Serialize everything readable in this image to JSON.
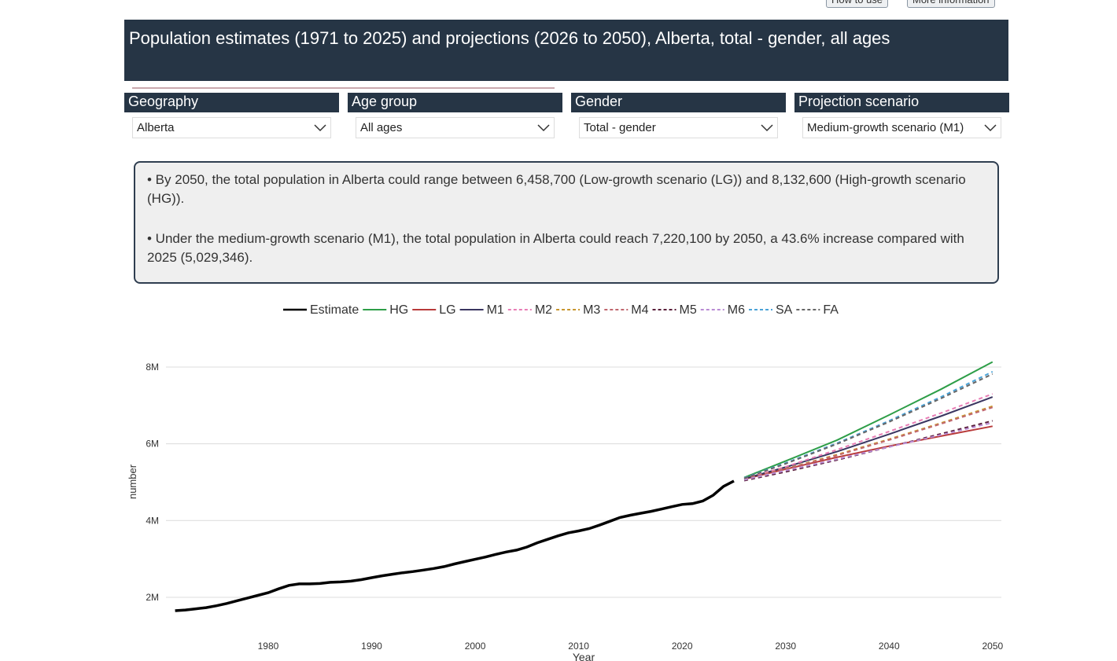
{
  "buttons": [
    "How to use",
    "More information"
  ],
  "header": {
    "title": "Population estimates (1971 to 2025) and projections (2026 to 2050), Alberta, total - gender, all ages"
  },
  "filters": [
    {
      "label": "Geography",
      "value": "Alberta"
    },
    {
      "label": "Age group",
      "value": "All ages"
    },
    {
      "label": "Gender",
      "value": "Total - gender"
    },
    {
      "label": "Projection scenario",
      "value": "Medium-growth scenario (M1)"
    }
  ],
  "summary": [
    "• By 2050, the total population in Alberta could range between 6,458,700 (Low-growth scenario (LG)) and 8,132,600 (High-growth scenario (HG)).",
    "• Under the medium-growth scenario (M1), the total population in Alberta could reach 7,220,100 by 2050, a 43.6% increase compared with 2025 (5,029,346)."
  ],
  "chart_data": {
    "type": "line",
    "x_label": "Year",
    "y_label": "number",
    "legend": "top",
    "grid": true,
    "xlim": [
      1970,
      2051
    ],
    "xticks": [
      1980,
      1990,
      2000,
      2010,
      2020,
      2030,
      2040,
      2050
    ],
    "ylim": [
      1200000,
      8500000
    ],
    "yticks": [
      {
        "value": 2000000,
        "label": "2M"
      },
      {
        "value": 4000000,
        "label": "4M"
      },
      {
        "value": 6000000,
        "label": "6M"
      },
      {
        "value": 8000000,
        "label": "8M"
      }
    ],
    "series": [
      {
        "name": "Estimate",
        "color": "#000000",
        "line_style": "solid",
        "x": [
          1971,
          1972,
          1973,
          1974,
          1975,
          1976,
          1977,
          1978,
          1979,
          1980,
          1981,
          1982,
          1983,
          1984,
          1985,
          1986,
          1987,
          1988,
          1989,
          1990,
          1991,
          1992,
          1993,
          1994,
          1995,
          1996,
          1997,
          1998,
          1999,
          2000,
          2001,
          2002,
          2003,
          2004,
          2005,
          2006,
          2007,
          2008,
          2009,
          2010,
          2011,
          2012,
          2013,
          2014,
          2015,
          2016,
          2017,
          2018,
          2019,
          2020,
          2021,
          2022,
          2023,
          2024,
          2025
        ],
        "values": [
          1650000,
          1670000,
          1700000,
          1730000,
          1780000,
          1840000,
          1910000,
          1980000,
          2050000,
          2120000,
          2220000,
          2310000,
          2350000,
          2350000,
          2360000,
          2390000,
          2400000,
          2420000,
          2460000,
          2510000,
          2560000,
          2600000,
          2640000,
          2670000,
          2710000,
          2750000,
          2800000,
          2870000,
          2930000,
          2990000,
          3050000,
          3120000,
          3180000,
          3230000,
          3310000,
          3420000,
          3510000,
          3600000,
          3680000,
          3730000,
          3790000,
          3880000,
          3980000,
          4080000,
          4140000,
          4190000,
          4240000,
          4300000,
          4360000,
          4420000,
          4440000,
          4510000,
          4660000,
          4890000,
          5029346
        ]
      },
      {
        "name": "HG",
        "color": "#2e9e48",
        "line_style": "solid",
        "x": [
          2026,
          2030,
          2035,
          2040,
          2045,
          2050
        ],
        "values": [
          5120000,
          5550000,
          6100000,
          6750000,
          7420000,
          8132600
        ]
      },
      {
        "name": "LG",
        "color": "#b83a3a",
        "line_style": "solid",
        "x": [
          2026,
          2030,
          2035,
          2040,
          2045,
          2050
        ],
        "values": [
          5080000,
          5340000,
          5650000,
          5940000,
          6200000,
          6458700
        ]
      },
      {
        "name": "M1",
        "color": "#3a3560",
        "line_style": "solid",
        "x": [
          2026,
          2030,
          2035,
          2040,
          2045,
          2050
        ],
        "values": [
          5090000,
          5390000,
          5800000,
          6250000,
          6720000,
          7220100
        ]
      },
      {
        "name": "M2",
        "color": "#e87db5",
        "line_style": "dashed",
        "x": [
          2026,
          2030,
          2035,
          2040,
          2045,
          2050
        ],
        "values": [
          5090000,
          5400000,
          5850000,
          6320000,
          6800000,
          7300000
        ]
      },
      {
        "name": "M3",
        "color": "#c8962e",
        "line_style": "dashed",
        "x": [
          2026,
          2030,
          2035,
          2040,
          2045,
          2050
        ],
        "values": [
          5080000,
          5350000,
          5720000,
          6120000,
          6540000,
          6980000
        ]
      },
      {
        "name": "M4",
        "color": "#c0666e",
        "line_style": "dashed",
        "x": [
          2026,
          2030,
          2035,
          2040,
          2045,
          2050
        ],
        "values": [
          5080000,
          5340000,
          5700000,
          6100000,
          6520000,
          6950000
        ]
      },
      {
        "name": "M5",
        "color": "#5a1f3a",
        "line_style": "dashed",
        "x": [
          2026,
          2030,
          2035,
          2040,
          2045,
          2050
        ],
        "values": [
          5040000,
          5270000,
          5580000,
          5920000,
          6260000,
          6600000
        ]
      },
      {
        "name": "M6",
        "color": "#b98bd4",
        "line_style": "dashed",
        "x": [
          2026,
          2030,
          2035,
          2040,
          2045,
          2050
        ],
        "values": [
          5060000,
          5300000,
          5600000,
          5920000,
          6230000,
          6550000
        ]
      },
      {
        "name": "SA",
        "color": "#4aa3d8",
        "line_style": "dashed",
        "x": [
          2026,
          2030,
          2035,
          2040,
          2045,
          2050
        ],
        "values": [
          5110000,
          5500000,
          6020000,
          6600000,
          7220000,
          7880000
        ]
      },
      {
        "name": "FA",
        "color": "#666666",
        "line_style": "dashed",
        "x": [
          2026,
          2030,
          2035,
          2040,
          2045,
          2050
        ],
        "values": [
          5100000,
          5480000,
          6000000,
          6570000,
          7180000,
          7820000
        ]
      }
    ]
  }
}
